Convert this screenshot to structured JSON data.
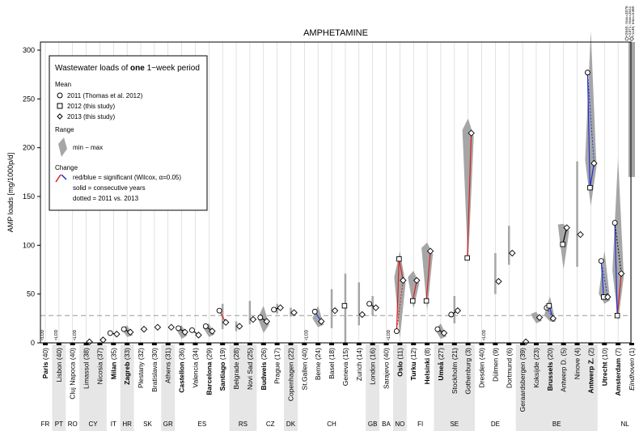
{
  "chart_data": {
    "type": "scatter",
    "title": "AMPHETAMINE",
    "ylabel": "AMP loads [mg/1000p/d]",
    "ylim": [
      0,
      310
    ],
    "yticks": [
      0,
      50,
      100,
      150,
      200,
      250,
      300
    ],
    "reference_line": 28,
    "top_annotations": [
      "+2640, max=3376",
      "+2371, max=3411",
      "+1130, max=2460"
    ],
    "legend": {
      "title_parts": [
        "Wastewater loads of ",
        "one",
        " 1−week period"
      ],
      "mean_heading": "Mean",
      "mean_entries": [
        {
          "marker": "circle",
          "label": "2011 (Thomas et al. 2012)"
        },
        {
          "marker": "square",
          "label": "2012 (this study)"
        },
        {
          "marker": "diamond",
          "label": "2013 (this study)"
        }
      ],
      "range_heading": "Range",
      "range_label": "min − max",
      "change_heading": "Change",
      "change_lines": [
        "red/blue = significant (Wilcox, α=0.05)",
        "solid = consecutive years",
        "dotted = 2011 vs. 2013"
      ]
    },
    "lod_label": "<LOD",
    "cities": [
      {
        "name": "Paris",
        "n": "(40)",
        "bold": true,
        "lod": [
          1,
          0,
          0
        ]
      },
      {
        "name": "Lisbon",
        "n": "(40)",
        "bold": false,
        "lod": [
          1,
          0,
          0
        ]
      },
      {
        "name": "Cluj Napoca",
        "n": "(40)",
        "bold": false,
        "lod": [
          0,
          0,
          1
        ]
      },
      {
        "name": "Limassol",
        "n": "(38)",
        "bold": false,
        "y2013": 1
      },
      {
        "name": "Nicosia",
        "n": "(37)",
        "bold": false,
        "y2013": 3
      },
      {
        "name": "Milan",
        "n": "(35)",
        "bold": true,
        "y2011": 10,
        "y2013": 9
      },
      {
        "name": "Zagreb",
        "n": "(33)",
        "bold": true,
        "y2011": 14,
        "y2013": 11,
        "band": [
          6,
          18
        ]
      },
      {
        "name": "Plestany",
        "n": "(32)",
        "bold": false,
        "y2013": 14
      },
      {
        "name": "Bratislava",
        "n": "(30)",
        "bold": false,
        "y2013": 16
      },
      {
        "name": "Athens",
        "n": "(31)",
        "bold": false,
        "y2013": 16
      },
      {
        "name": "Castellon",
        "n": "(36)",
        "bold": true,
        "y2011": 15,
        "y2013": 11,
        "band": [
          4,
          18
        ]
      },
      {
        "name": "Valencia",
        "n": "(34)",
        "bold": false,
        "y2011": 13,
        "y2013": 8
      },
      {
        "name": "Barcelona",
        "n": "(29)",
        "bold": true,
        "y2011": 17,
        "y2013": 12,
        "band": [
          6,
          20
        ]
      },
      {
        "name": "Santiago",
        "n": "(19)",
        "bold": true,
        "y2011": 33,
        "y2013": 21,
        "change": "red",
        "bar": [
          14,
          40
        ]
      },
      {
        "name": "Belgrade",
        "n": "(28)",
        "bold": false,
        "y2013": 17,
        "bar": [
          12,
          22
        ]
      },
      {
        "name": "Novi Sad",
        "n": "(25)",
        "bold": false,
        "y2013": 24,
        "bar": [
          19,
          43
        ]
      },
      {
        "name": "Budweis",
        "n": "(26)",
        "bold": true,
        "y2011": 26,
        "y2013": 22,
        "band": [
          10,
          38
        ]
      },
      {
        "name": "Prague",
        "n": "(17)",
        "bold": false,
        "y2011": 34,
        "y2013": 36,
        "bar": [
          30,
          40
        ]
      },
      {
        "name": "Copenhagen",
        "n": "(22)",
        "bold": false,
        "y2013": 31,
        "bar": [
          27,
          36
        ]
      },
      {
        "name": "St.Gallen",
        "n": "(40)",
        "bold": false,
        "lod": [
          0,
          0,
          1
        ]
      },
      {
        "name": "Berne",
        "n": "(24)",
        "bold": false,
        "y2011": 32,
        "y2013": 22,
        "change": "blue",
        "band": [
          16,
          38
        ]
      },
      {
        "name": "Basel",
        "n": "(18)",
        "bold": false,
        "y2013": 33,
        "bar": [
          15,
          55
        ]
      },
      {
        "name": "Geneva",
        "n": "(15)",
        "bold": false,
        "y2012": 38,
        "bar": [
          0,
          71
        ]
      },
      {
        "name": "Zurich",
        "n": "(14)",
        "bold": false,
        "y2013": 29,
        "bar": [
          18,
          62
        ]
      },
      {
        "name": "London",
        "n": "(16)",
        "bold": false,
        "y2011": 40,
        "y2013": 36,
        "bar": [
          28,
          48
        ]
      },
      {
        "name": "Sarajevo",
        "n": "(40)",
        "bold": false,
        "lod": [
          0,
          0,
          1
        ]
      },
      {
        "name": "Oslo",
        "n": "(11)",
        "bold": true,
        "y2011": 12,
        "y2012": 86,
        "y2013": 64,
        "change": "red",
        "band": [
          5,
          94
        ]
      },
      {
        "name": "Turku",
        "n": "(12)",
        "bold": true,
        "y2012": 43,
        "y2013": 64,
        "change": "red",
        "band": [
          35,
          74
        ]
      },
      {
        "name": "Helsinki",
        "n": "(8)",
        "bold": true,
        "y2012": 43,
        "y2013": 94,
        "change": "red",
        "band": [
          33,
          103
        ]
      },
      {
        "name": "Umeå",
        "n": "(27)",
        "bold": true,
        "y2011": 14,
        "y2013": 10,
        "band": [
          4,
          20
        ]
      },
      {
        "name": "Stockholm",
        "n": "(21)",
        "bold": false,
        "y2011": 29,
        "y2013": 33,
        "bar": [
          20,
          48
        ]
      },
      {
        "name": "Gothenburg",
        "n": "(3)",
        "bold": false,
        "y2012": 87,
        "y2013": 215,
        "change": "red",
        "band": [
          80,
          230
        ]
      },
      {
        "name": "Dresden",
        "n": "(40)",
        "bold": false,
        "lod": [
          0,
          0,
          1
        ]
      },
      {
        "name": "Dülmen",
        "n": "(9)",
        "bold": false,
        "y2013": 63,
        "bar": [
          50,
          92
        ]
      },
      {
        "name": "Dortmund",
        "n": "(6)",
        "bold": false,
        "y2013": 92,
        "bar": [
          80,
          120
        ]
      },
      {
        "name": "Geraardsbergen",
        "n": "(39)",
        "bold": false,
        "y2013": 1
      },
      {
        "name": "Koksijde",
        "n": "(23)",
        "bold": false,
        "y2013": 26,
        "band": [
          20,
          32
        ]
      },
      {
        "name": "Brussels",
        "n": "(20)",
        "bold": true,
        "y2011": 36,
        "y2012": 38,
        "y2013": 25,
        "change": "blue",
        "band": [
          22,
          48
        ]
      },
      {
        "name": "Antwerp D.",
        "n": "(5)",
        "bold": false,
        "y2012": 101,
        "y2013": 118,
        "band": [
          75,
          122
        ]
      },
      {
        "name": "Ninove",
        "n": "(4)",
        "bold": false,
        "y2013": 111,
        "bar": [
          78,
          186
        ]
      },
      {
        "name": "Antwerp Z.",
        "n": "(2)",
        "bold": true,
        "y2011": 277,
        "y2012": 159,
        "y2013": 184,
        "change": "blue",
        "band": [
          140,
          320
        ]
      },
      {
        "name": "Utrecht",
        "n": "(10)",
        "bold": true,
        "y2011": 84,
        "y2012": 47,
        "y2013": 47,
        "change": "blue",
        "band": [
          40,
          95
        ]
      },
      {
        "name": "Amsterdam",
        "n": "(7)",
        "bold": true,
        "y2011": 123,
        "y2012": 28,
        "y2013": 71,
        "change": "mixed",
        "band": [
          22,
          190
        ]
      },
      {
        "name": "Eindhoven",
        "n": "(1)",
        "bold": false,
        "italic": true,
        "bar": [
          170,
          380
        ]
      }
    ],
    "countries": [
      {
        "code": "FR",
        "span": [
          0,
          0
        ]
      },
      {
        "code": "PT",
        "span": [
          1,
          1
        ]
      },
      {
        "code": "RO",
        "span": [
          2,
          2
        ]
      },
      {
        "code": "CY",
        "span": [
          3,
          4
        ]
      },
      {
        "code": "IT",
        "span": [
          5,
          5
        ]
      },
      {
        "code": "HR",
        "span": [
          6,
          6
        ]
      },
      {
        "code": "SK",
        "span": [
          7,
          8
        ]
      },
      {
        "code": "GR",
        "span": [
          9,
          9
        ]
      },
      {
        "code": "ES",
        "span": [
          10,
          13
        ]
      },
      {
        "code": "RS",
        "span": [
          14,
          15
        ]
      },
      {
        "code": "CZ",
        "span": [
          16,
          17
        ]
      },
      {
        "code": "DK",
        "span": [
          18,
          18
        ]
      },
      {
        "code": "CH",
        "span": [
          19,
          23
        ]
      },
      {
        "code": "GB",
        "span": [
          24,
          24
        ]
      },
      {
        "code": "BA",
        "span": [
          25,
          25
        ]
      },
      {
        "code": "NO",
        "span": [
          26,
          26
        ]
      },
      {
        "code": "FI",
        "span": [
          27,
          28
        ]
      },
      {
        "code": "SE",
        "span": [
          29,
          31
        ]
      },
      {
        "code": "DE",
        "span": [
          32,
          34
        ]
      },
      {
        "code": "BE",
        "span": [
          35,
          40
        ]
      },
      {
        "code": "NL",
        "span": [
          41,
          44
        ]
      }
    ],
    "colors": {
      "band": "#a6a6a6",
      "red": "#d62020",
      "blue": "#1f2fd0",
      "alt_bg": "#e6e6e6",
      "ref_line": "#999999"
    }
  }
}
